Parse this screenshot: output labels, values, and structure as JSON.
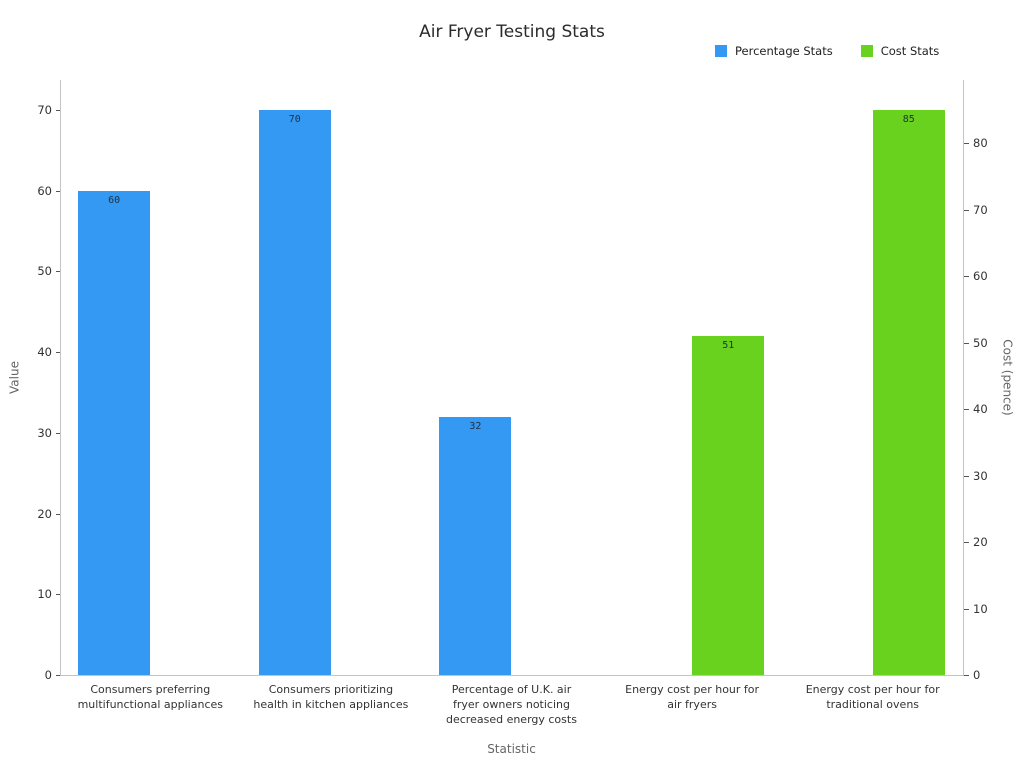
{
  "chart_data": {
    "type": "bar",
    "title": "Air Fryer Testing Stats",
    "xlabel": "Statistic",
    "ylabel_left": "Value",
    "ylabel_right": "Cost (pence)",
    "legend_position": "top-right",
    "grid": false,
    "categories": [
      {
        "label": "Consumers preferring multifunctional appliances",
        "lines": [
          "Consumers preferring",
          "multifunctional appliances"
        ]
      },
      {
        "label": "Consumers prioritizing health in kitchen appliances",
        "lines": [
          "Consumers prioritizing",
          "health in kitchen appliances"
        ]
      },
      {
        "label": "Percentage of U.K. air fryer owners noticing decreased energy costs",
        "lines": [
          "Percentage of U.K. air",
          "fryer owners noticing",
          "decreased energy costs"
        ]
      },
      {
        "label": "Energy cost per hour for air fryers",
        "lines": [
          "Energy cost per hour for",
          "air fryers"
        ]
      },
      {
        "label": "Energy cost per hour for traditional ovens",
        "lines": [
          "Energy cost per hour for",
          "traditional ovens"
        ]
      }
    ],
    "series": [
      {
        "name": "Percentage Stats",
        "color": "#3399f3",
        "axis": "left",
        "values": [
          60,
          70,
          32,
          null,
          null
        ]
      },
      {
        "name": "Cost Stats",
        "color": "#69d21e",
        "axis": "right",
        "values": [
          null,
          null,
          null,
          51,
          85
        ]
      }
    ],
    "left_axis": {
      "min": 0,
      "max": 73.7,
      "ticks": [
        0,
        10,
        20,
        30,
        40,
        50,
        60,
        70
      ]
    },
    "right_axis": {
      "min": 0,
      "max": 89.5,
      "ticks": [
        0,
        10,
        20,
        30,
        40,
        50,
        60,
        70,
        80
      ]
    }
  }
}
